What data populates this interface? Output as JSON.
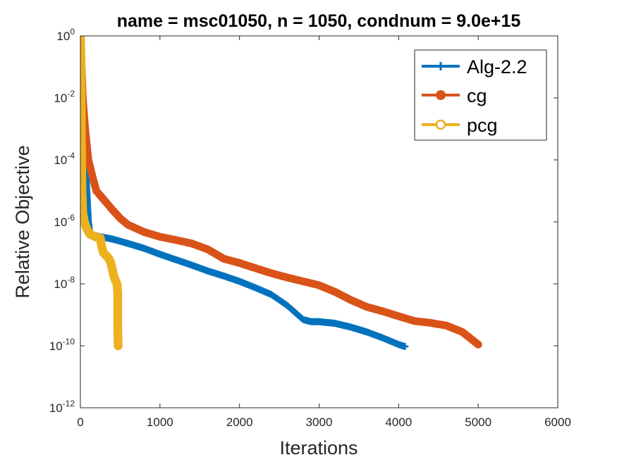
{
  "chart_data": {
    "type": "line",
    "title": "name = msc01050, n = 1050, condnum = 9.0e+15",
    "xlabel": "Iterations",
    "ylabel": "Relative Objective",
    "xscale": "linear",
    "yscale": "log",
    "xlim": [
      0,
      6000
    ],
    "ylim": [
      1e-12,
      1
    ],
    "xticks": [
      "0",
      "1000",
      "2000",
      "3000",
      "4000",
      "5000",
      "6000"
    ],
    "yticks": [
      {
        "base": "10",
        "exp": "0"
      },
      {
        "base": "10",
        "exp": "-2"
      },
      {
        "base": "10",
        "exp": "-4"
      },
      {
        "base": "10",
        "exp": "-6"
      },
      {
        "base": "10",
        "exp": "-8"
      },
      {
        "base": "10",
        "exp": "-10"
      },
      {
        "base": "10",
        "exp": "-12"
      }
    ],
    "legend_position": "top-right",
    "series": [
      {
        "name": "Alg-2.2",
        "color": "#0072BD",
        "marker": "plus",
        "points": [
          [
            0,
            1
          ],
          [
            10,
            0.1
          ],
          [
            20,
            0.01
          ],
          [
            40,
            0.001
          ],
          [
            60,
            0.0001
          ],
          [
            80,
            1e-05
          ],
          [
            100,
            1e-06
          ],
          [
            120,
            4e-07
          ],
          [
            200,
            3.5e-07
          ],
          [
            400,
            2.8e-07
          ],
          [
            600,
            2e-07
          ],
          [
            800,
            1.4e-07
          ],
          [
            1000,
            9e-08
          ],
          [
            1200,
            6e-08
          ],
          [
            1400,
            4e-08
          ],
          [
            1600,
            2.6e-08
          ],
          [
            1800,
            1.8e-08
          ],
          [
            2000,
            1.2e-08
          ],
          [
            2200,
            7.5e-09
          ],
          [
            2400,
            4.5e-09
          ],
          [
            2600,
            2e-09
          ],
          [
            2800,
            7e-10
          ],
          [
            2900,
            6e-10
          ],
          [
            3000,
            6e-10
          ],
          [
            3200,
            5.3e-10
          ],
          [
            3400,
            4e-10
          ],
          [
            3600,
            2.8e-10
          ],
          [
            3800,
            1.8e-10
          ],
          [
            4000,
            1.1e-10
          ],
          [
            4080,
            9.5e-11
          ]
        ]
      },
      {
        "name": "cg",
        "color": "#D95319",
        "marker": "filled-circle",
        "points": [
          [
            0,
            1
          ],
          [
            15,
            0.1
          ],
          [
            30,
            0.01
          ],
          [
            60,
            0.001
          ],
          [
            100,
            0.0001
          ],
          [
            150,
            3e-05
          ],
          [
            200,
            1e-05
          ],
          [
            300,
            5e-06
          ],
          [
            400,
            2.5e-06
          ],
          [
            500,
            1.3e-06
          ],
          [
            600,
            8e-07
          ],
          [
            800,
            4.7e-07
          ],
          [
            1000,
            3.3e-07
          ],
          [
            1200,
            2.6e-07
          ],
          [
            1400,
            2e-07
          ],
          [
            1600,
            1.3e-07
          ],
          [
            1800,
            6.5e-08
          ],
          [
            2000,
            4.7e-08
          ],
          [
            2200,
            3.2e-08
          ],
          [
            2400,
            2.2e-08
          ],
          [
            2600,
            1.6e-08
          ],
          [
            2800,
            1.2e-08
          ],
          [
            3000,
            9e-09
          ],
          [
            3200,
            5.5e-09
          ],
          [
            3400,
            3e-09
          ],
          [
            3600,
            1.8e-09
          ],
          [
            3800,
            1.3e-09
          ],
          [
            4000,
            9e-10
          ],
          [
            4200,
            6.3e-10
          ],
          [
            4400,
            5.5e-10
          ],
          [
            4600,
            4.5e-10
          ],
          [
            4800,
            2.8e-10
          ],
          [
            5000,
            1.1e-10
          ]
        ]
      },
      {
        "name": "pcg",
        "color": "#EDB120",
        "marker": "open-circle",
        "points": [
          [
            0,
            1
          ],
          [
            5,
            0.3
          ],
          [
            8,
            0.05
          ],
          [
            10,
            0.01
          ],
          [
            12,
            0.001
          ],
          [
            15,
            0.0001
          ],
          [
            20,
            1e-05
          ],
          [
            30,
            2e-06
          ],
          [
            50,
            1e-06
          ],
          [
            80,
            6e-07
          ],
          [
            120,
            4e-07
          ],
          [
            200,
            3.2e-07
          ],
          [
            250,
            3e-07
          ],
          [
            270,
            1.5e-07
          ],
          [
            290,
            1e-07
          ],
          [
            350,
            7e-08
          ],
          [
            380,
            5e-08
          ],
          [
            400,
            3e-08
          ],
          [
            420,
            1.8e-08
          ],
          [
            440,
            1.3e-08
          ],
          [
            460,
            1e-08
          ],
          [
            470,
            5e-09
          ],
          [
            470,
            1e-09
          ],
          [
            470,
            3e-10
          ],
          [
            475,
            1e-10
          ]
        ]
      }
    ]
  }
}
